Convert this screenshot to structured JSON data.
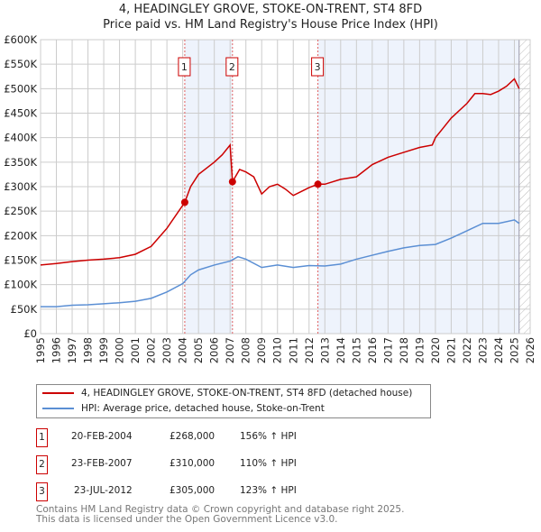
{
  "chart_data": {
    "type": "line",
    "title": "4, HEADINGLEY GROVE, STOKE-ON-TRENT, ST4 8FD",
    "subtitle": "Price paid vs. HM Land Registry's House Price Index (HPI)",
    "xlim": [
      1995,
      2026
    ],
    "ylim": [
      0,
      600000
    ],
    "x_ticks": [
      "1995",
      "1996",
      "1997",
      "1998",
      "1999",
      "2000",
      "2001",
      "2002",
      "2003",
      "2004",
      "2005",
      "2006",
      "2007",
      "2008",
      "2009",
      "2010",
      "2011",
      "2012",
      "2013",
      "2014",
      "2015",
      "2016",
      "2017",
      "2018",
      "2019",
      "2020",
      "2021",
      "2022",
      "2023",
      "2024",
      "2025",
      "2026"
    ],
    "y_ticks": [
      {
        "v": 0,
        "l": "£0"
      },
      {
        "v": 50000,
        "l": "£50K"
      },
      {
        "v": 100000,
        "l": "£100K"
      },
      {
        "v": 150000,
        "l": "£150K"
      },
      {
        "v": 200000,
        "l": "£200K"
      },
      {
        "v": 250000,
        "l": "£250K"
      },
      {
        "v": 300000,
        "l": "£300K"
      },
      {
        "v": 350000,
        "l": "£350K"
      },
      {
        "v": 400000,
        "l": "£400K"
      },
      {
        "v": 450000,
        "l": "£450K"
      },
      {
        "v": 500000,
        "l": "£500K"
      },
      {
        "v": 550000,
        "l": "£550K"
      },
      {
        "v": 600000,
        "l": "£600K"
      }
    ],
    "grid": true,
    "series": [
      {
        "name": "4, HEADINGLEY GROVE, STOKE-ON-TRENT, ST4 8FD (detached house)",
        "color": "#cc0000",
        "x": [
          1995,
          1996,
          1997,
          1998,
          1999,
          2000,
          2001,
          2002,
          2003,
          2004.13,
          2004.5,
          2005,
          2006,
          2006.5,
          2007.0,
          2007.15,
          2007.6,
          2008,
          2008.5,
          2009,
          2009.5,
          2010,
          2010.5,
          2011,
          2011.5,
          2012,
          2012.56,
          2013,
          2014,
          2015,
          2016,
          2017,
          2018,
          2019,
          2019.8,
          2020,
          2020.5,
          2021,
          2022,
          2022.5,
          2023,
          2023.5,
          2024,
          2024.5,
          2025,
          2025.3
        ],
        "y": [
          140000,
          143000,
          147000,
          150000,
          152000,
          155000,
          162000,
          178000,
          215000,
          268000,
          300000,
          325000,
          350000,
          365000,
          385000,
          310000,
          335000,
          330000,
          320000,
          285000,
          300000,
          305000,
          295000,
          282000,
          290000,
          298000,
          305000,
          305000,
          315000,
          320000,
          345000,
          360000,
          370000,
          380000,
          385000,
          400000,
          420000,
          440000,
          470000,
          490000,
          490000,
          488000,
          495000,
          505000,
          520000,
          500000
        ]
      },
      {
        "name": "HPI: Average price, detached house, Stoke-on-Trent",
        "color": "#5b8fd4",
        "x": [
          1995,
          1996,
          1997,
          1998,
          1999,
          2000,
          2001,
          2002,
          2003,
          2004,
          2004.5,
          2005,
          2006,
          2007,
          2007.5,
          2008,
          2009,
          2010,
          2011,
          2012,
          2013,
          2014,
          2015,
          2016,
          2017,
          2018,
          2019,
          2020,
          2021,
          2022,
          2023,
          2024,
          2025,
          2025.3
        ],
        "y": [
          55000,
          55000,
          58000,
          59000,
          61000,
          63000,
          66000,
          72000,
          85000,
          102000,
          120000,
          130000,
          140000,
          148000,
          157000,
          152000,
          135000,
          140000,
          135000,
          139000,
          138000,
          142000,
          152000,
          160000,
          168000,
          175000,
          180000,
          182000,
          195000,
          210000,
          225000,
          225000,
          232000,
          225000
        ]
      }
    ],
    "sales": [
      {
        "n": "1",
        "x": 2004.13,
        "y": 268000
      },
      {
        "n": "2",
        "x": 2007.15,
        "y": 310000
      },
      {
        "n": "3",
        "x": 2012.56,
        "y": 305000
      }
    ],
    "legend_placement": "below"
  },
  "table": [
    {
      "n": "1",
      "date": "20-FEB-2004",
      "price": "£268,000",
      "hpi": "156% ↑ HPI"
    },
    {
      "n": "2",
      "date": "23-FEB-2007",
      "price": "£310,000",
      "hpi": "110% ↑ HPI"
    },
    {
      "n": "3",
      "date": "23-JUL-2012",
      "price": "£305,000",
      "hpi": "123% ↑ HPI"
    }
  ],
  "footer": [
    "Contains HM Land Registry data © Crown copyright and database right 2025.",
    "This data is licensed under the Open Government Licence v3.0."
  ]
}
